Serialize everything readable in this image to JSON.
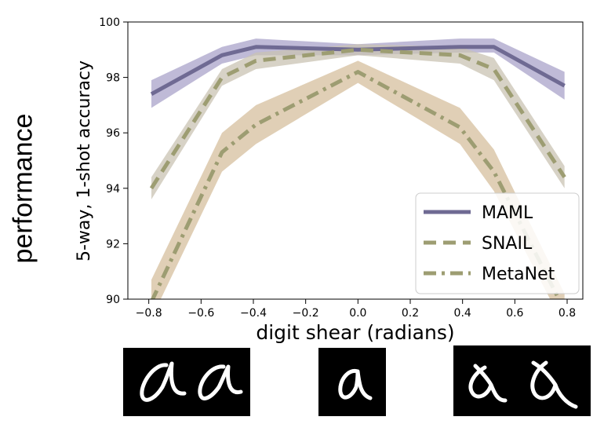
{
  "side_label": "performance",
  "chart_data": {
    "type": "line",
    "xlabel": "digit shear (radians)",
    "ylabel": "5-way, 1-shot accuracy",
    "xlim": [
      -0.88,
      0.86
    ],
    "ylim": [
      90,
      100
    ],
    "x": [
      -0.79,
      -0.52,
      -0.39,
      0.0,
      0.39,
      0.52,
      0.79
    ],
    "xticks": [
      -0.8,
      -0.6,
      -0.4,
      -0.2,
      0.0,
      0.2,
      0.4,
      0.6,
      0.8
    ],
    "xtick_labels": [
      "−0.8",
      "−0.6",
      "−0.4",
      "−0.2",
      "0.0",
      "0.2",
      "0.4",
      "0.6",
      "0.8"
    ],
    "yticks": [
      90,
      92,
      94,
      96,
      98,
      100
    ],
    "ytick_labels": [
      "90",
      "92",
      "94",
      "96",
      "98",
      "100"
    ],
    "grid": false,
    "legend_position": "bottom-right",
    "series": [
      {
        "name": "MAML",
        "style": "solid",
        "color": "#6f6a93",
        "band_color": "#a9a3c9",
        "values": [
          97.4,
          98.8,
          99.1,
          99.0,
          99.1,
          99.1,
          97.7
        ],
        "lower": [
          96.9,
          98.5,
          98.8,
          98.8,
          98.9,
          98.9,
          97.2
        ],
        "upper": [
          97.9,
          99.1,
          99.4,
          99.2,
          99.4,
          99.4,
          98.2
        ]
      },
      {
        "name": "SNAIL",
        "style": "dashed",
        "color": "#9d9d72",
        "band_color": "#c9c3b3",
        "values": [
          94.0,
          98.0,
          98.6,
          99.0,
          98.8,
          98.3,
          94.4
        ],
        "lower": [
          93.6,
          97.7,
          98.3,
          98.8,
          98.5,
          97.9,
          94.0
        ],
        "upper": [
          94.4,
          98.3,
          98.9,
          99.2,
          99.1,
          98.7,
          94.8
        ]
      },
      {
        "name": "MetaNet",
        "style": "dashdot",
        "color": "#9d9d72",
        "band_color": "#d6bf9e",
        "values": [
          89.9,
          95.3,
          96.3,
          98.2,
          96.2,
          94.6,
          89.6
        ],
        "lower": [
          89.3,
          94.6,
          95.6,
          97.8,
          95.6,
          93.9,
          89.0
        ],
        "upper": [
          90.7,
          96.0,
          97.0,
          98.6,
          96.9,
          95.4,
          90.2
        ]
      }
    ]
  },
  "digit_panels": [
    {
      "glyph": "alpha"
    },
    {
      "glyph": "alpha"
    },
    {
      "glyph": "alpha"
    },
    {
      "glyph": "alpha"
    },
    {
      "glyph": "alpha"
    }
  ]
}
